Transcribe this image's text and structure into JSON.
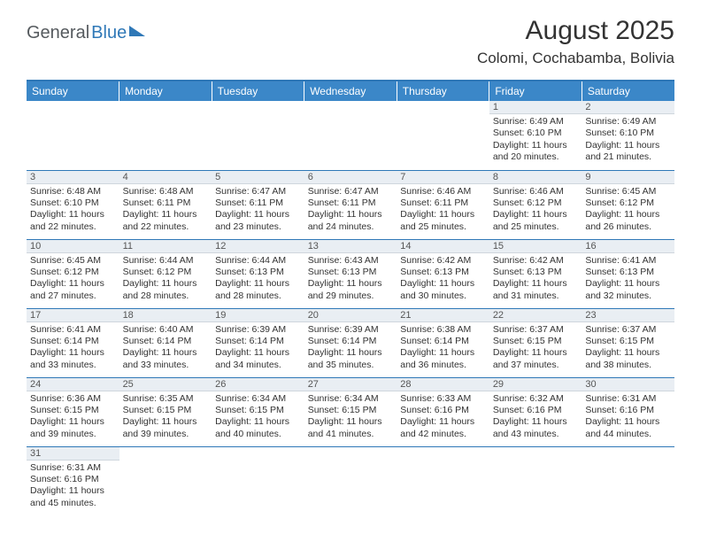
{
  "logo": {
    "general": "General",
    "blue": "Blue"
  },
  "title": "August 2025",
  "location": "Colomi, Cochabamba, Bolivia",
  "colors": {
    "header_bg": "#3b87c8",
    "rule": "#2f78b7",
    "daynum_bg": "#e9eef3",
    "text": "#333333"
  },
  "weekdays": [
    "Sunday",
    "Monday",
    "Tuesday",
    "Wednesday",
    "Thursday",
    "Friday",
    "Saturday"
  ],
  "weeks": [
    [
      null,
      null,
      null,
      null,
      null,
      {
        "d": "1",
        "sr": "Sunrise: 6:49 AM",
        "ss": "Sunset: 6:10 PM",
        "dl1": "Daylight: 11 hours",
        "dl2": "and 20 minutes."
      },
      {
        "d": "2",
        "sr": "Sunrise: 6:49 AM",
        "ss": "Sunset: 6:10 PM",
        "dl1": "Daylight: 11 hours",
        "dl2": "and 21 minutes."
      }
    ],
    [
      {
        "d": "3",
        "sr": "Sunrise: 6:48 AM",
        "ss": "Sunset: 6:10 PM",
        "dl1": "Daylight: 11 hours",
        "dl2": "and 22 minutes."
      },
      {
        "d": "4",
        "sr": "Sunrise: 6:48 AM",
        "ss": "Sunset: 6:11 PM",
        "dl1": "Daylight: 11 hours",
        "dl2": "and 22 minutes."
      },
      {
        "d": "5",
        "sr": "Sunrise: 6:47 AM",
        "ss": "Sunset: 6:11 PM",
        "dl1": "Daylight: 11 hours",
        "dl2": "and 23 minutes."
      },
      {
        "d": "6",
        "sr": "Sunrise: 6:47 AM",
        "ss": "Sunset: 6:11 PM",
        "dl1": "Daylight: 11 hours",
        "dl2": "and 24 minutes."
      },
      {
        "d": "7",
        "sr": "Sunrise: 6:46 AM",
        "ss": "Sunset: 6:11 PM",
        "dl1": "Daylight: 11 hours",
        "dl2": "and 25 minutes."
      },
      {
        "d": "8",
        "sr": "Sunrise: 6:46 AM",
        "ss": "Sunset: 6:12 PM",
        "dl1": "Daylight: 11 hours",
        "dl2": "and 25 minutes."
      },
      {
        "d": "9",
        "sr": "Sunrise: 6:45 AM",
        "ss": "Sunset: 6:12 PM",
        "dl1": "Daylight: 11 hours",
        "dl2": "and 26 minutes."
      }
    ],
    [
      {
        "d": "10",
        "sr": "Sunrise: 6:45 AM",
        "ss": "Sunset: 6:12 PM",
        "dl1": "Daylight: 11 hours",
        "dl2": "and 27 minutes."
      },
      {
        "d": "11",
        "sr": "Sunrise: 6:44 AM",
        "ss": "Sunset: 6:12 PM",
        "dl1": "Daylight: 11 hours",
        "dl2": "and 28 minutes."
      },
      {
        "d": "12",
        "sr": "Sunrise: 6:44 AM",
        "ss": "Sunset: 6:13 PM",
        "dl1": "Daylight: 11 hours",
        "dl2": "and 28 minutes."
      },
      {
        "d": "13",
        "sr": "Sunrise: 6:43 AM",
        "ss": "Sunset: 6:13 PM",
        "dl1": "Daylight: 11 hours",
        "dl2": "and 29 minutes."
      },
      {
        "d": "14",
        "sr": "Sunrise: 6:42 AM",
        "ss": "Sunset: 6:13 PM",
        "dl1": "Daylight: 11 hours",
        "dl2": "and 30 minutes."
      },
      {
        "d": "15",
        "sr": "Sunrise: 6:42 AM",
        "ss": "Sunset: 6:13 PM",
        "dl1": "Daylight: 11 hours",
        "dl2": "and 31 minutes."
      },
      {
        "d": "16",
        "sr": "Sunrise: 6:41 AM",
        "ss": "Sunset: 6:13 PM",
        "dl1": "Daylight: 11 hours",
        "dl2": "and 32 minutes."
      }
    ],
    [
      {
        "d": "17",
        "sr": "Sunrise: 6:41 AM",
        "ss": "Sunset: 6:14 PM",
        "dl1": "Daylight: 11 hours",
        "dl2": "and 33 minutes."
      },
      {
        "d": "18",
        "sr": "Sunrise: 6:40 AM",
        "ss": "Sunset: 6:14 PM",
        "dl1": "Daylight: 11 hours",
        "dl2": "and 33 minutes."
      },
      {
        "d": "19",
        "sr": "Sunrise: 6:39 AM",
        "ss": "Sunset: 6:14 PM",
        "dl1": "Daylight: 11 hours",
        "dl2": "and 34 minutes."
      },
      {
        "d": "20",
        "sr": "Sunrise: 6:39 AM",
        "ss": "Sunset: 6:14 PM",
        "dl1": "Daylight: 11 hours",
        "dl2": "and 35 minutes."
      },
      {
        "d": "21",
        "sr": "Sunrise: 6:38 AM",
        "ss": "Sunset: 6:14 PM",
        "dl1": "Daylight: 11 hours",
        "dl2": "and 36 minutes."
      },
      {
        "d": "22",
        "sr": "Sunrise: 6:37 AM",
        "ss": "Sunset: 6:15 PM",
        "dl1": "Daylight: 11 hours",
        "dl2": "and 37 minutes."
      },
      {
        "d": "23",
        "sr": "Sunrise: 6:37 AM",
        "ss": "Sunset: 6:15 PM",
        "dl1": "Daylight: 11 hours",
        "dl2": "and 38 minutes."
      }
    ],
    [
      {
        "d": "24",
        "sr": "Sunrise: 6:36 AM",
        "ss": "Sunset: 6:15 PM",
        "dl1": "Daylight: 11 hours",
        "dl2": "and 39 minutes."
      },
      {
        "d": "25",
        "sr": "Sunrise: 6:35 AM",
        "ss": "Sunset: 6:15 PM",
        "dl1": "Daylight: 11 hours",
        "dl2": "and 39 minutes."
      },
      {
        "d": "26",
        "sr": "Sunrise: 6:34 AM",
        "ss": "Sunset: 6:15 PM",
        "dl1": "Daylight: 11 hours",
        "dl2": "and 40 minutes."
      },
      {
        "d": "27",
        "sr": "Sunrise: 6:34 AM",
        "ss": "Sunset: 6:15 PM",
        "dl1": "Daylight: 11 hours",
        "dl2": "and 41 minutes."
      },
      {
        "d": "28",
        "sr": "Sunrise: 6:33 AM",
        "ss": "Sunset: 6:16 PM",
        "dl1": "Daylight: 11 hours",
        "dl2": "and 42 minutes."
      },
      {
        "d": "29",
        "sr": "Sunrise: 6:32 AM",
        "ss": "Sunset: 6:16 PM",
        "dl1": "Daylight: 11 hours",
        "dl2": "and 43 minutes."
      },
      {
        "d": "30",
        "sr": "Sunrise: 6:31 AM",
        "ss": "Sunset: 6:16 PM",
        "dl1": "Daylight: 11 hours",
        "dl2": "and 44 minutes."
      }
    ],
    [
      {
        "d": "31",
        "sr": "Sunrise: 6:31 AM",
        "ss": "Sunset: 6:16 PM",
        "dl1": "Daylight: 11 hours",
        "dl2": "and 45 minutes."
      },
      null,
      null,
      null,
      null,
      null,
      null
    ]
  ]
}
